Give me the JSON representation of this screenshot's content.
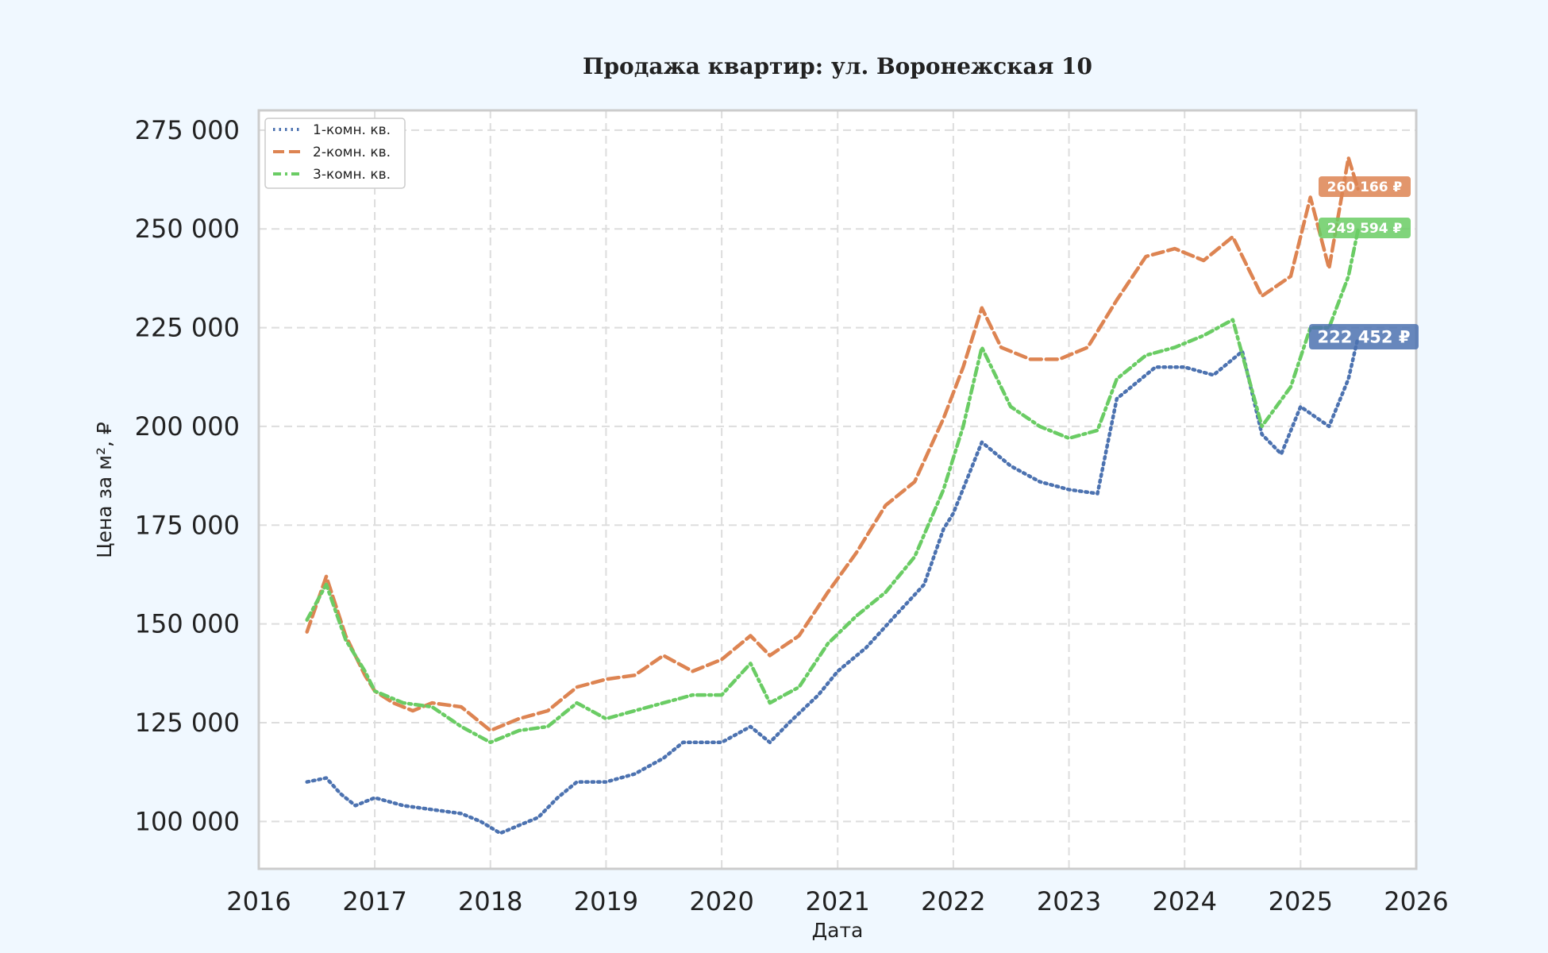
{
  "chart_data": {
    "type": "line",
    "title": "Продажа квартир: ул. Воронежская 10",
    "xlabel": "Дата",
    "ylabel": "Цена за м², ₽",
    "xlim": [
      "2016-01-01",
      "2026-01-01"
    ],
    "ylim": [
      88000,
      280000
    ],
    "x_ticks": [
      "2016",
      "2017",
      "2018",
      "2019",
      "2020",
      "2021",
      "2022",
      "2023",
      "2024",
      "2025",
      "2026"
    ],
    "y_ticks": [
      100000,
      125000,
      150000,
      175000,
      200000,
      225000,
      250000,
      275000
    ],
    "y_tick_labels": [
      "100 000",
      "125 000",
      "150 000",
      "175 000",
      "200 000",
      "225 000",
      "250 000",
      "275 000"
    ],
    "grid": true,
    "legend_position": "top-left",
    "series": [
      {
        "name": "1-комн. кв.",
        "color": "#4c72b0",
        "style": "dotted",
        "end_label": "222 452 ₽",
        "points": [
          [
            "2016-06-01",
            110000
          ],
          [
            "2016-08-01",
            111000
          ],
          [
            "2016-09-15",
            107000
          ],
          [
            "2016-11-01",
            104000
          ],
          [
            "2017-01-01",
            106000
          ],
          [
            "2017-04-01",
            104000
          ],
          [
            "2017-07-01",
            103000
          ],
          [
            "2017-10-01",
            102000
          ],
          [
            "2017-12-01",
            100000
          ],
          [
            "2018-02-01",
            97000
          ],
          [
            "2018-04-01",
            99000
          ],
          [
            "2018-06-01",
            101000
          ],
          [
            "2018-08-01",
            106000
          ],
          [
            "2018-10-01",
            110000
          ],
          [
            "2019-01-01",
            110000
          ],
          [
            "2019-04-01",
            112000
          ],
          [
            "2019-07-01",
            116000
          ],
          [
            "2019-09-01",
            120000
          ],
          [
            "2020-01-01",
            120000
          ],
          [
            "2020-04-01",
            124000
          ],
          [
            "2020-06-01",
            120000
          ],
          [
            "2020-08-01",
            125000
          ],
          [
            "2020-11-01",
            132000
          ],
          [
            "2021-01-01",
            138000
          ],
          [
            "2021-04-01",
            144000
          ],
          [
            "2021-07-01",
            152000
          ],
          [
            "2021-10-01",
            160000
          ],
          [
            "2021-12-01",
            174000
          ],
          [
            "2022-01-01",
            178000
          ],
          [
            "2022-04-01",
            196000
          ],
          [
            "2022-07-01",
            190000
          ],
          [
            "2022-10-01",
            186000
          ],
          [
            "2023-01-01",
            184000
          ],
          [
            "2023-04-01",
            183000
          ],
          [
            "2023-06-01",
            207000
          ],
          [
            "2023-10-01",
            215000
          ],
          [
            "2024-01-01",
            215000
          ],
          [
            "2024-04-01",
            213000
          ],
          [
            "2024-07-01",
            219000
          ],
          [
            "2024-09-01",
            198000
          ],
          [
            "2024-11-01",
            193000
          ],
          [
            "2025-01-01",
            205000
          ],
          [
            "2025-04-01",
            200000
          ],
          [
            "2025-06-01",
            212000
          ],
          [
            "2025-07-01",
            222452
          ]
        ]
      },
      {
        "name": "2-комн. кв.",
        "color": "#dd8452",
        "style": "dashed",
        "end_label": "260 166 ₽",
        "points": [
          [
            "2016-06-01",
            148000
          ],
          [
            "2016-08-01",
            162000
          ],
          [
            "2016-10-01",
            147000
          ],
          [
            "2016-12-01",
            137000
          ],
          [
            "2017-01-01",
            133000
          ],
          [
            "2017-03-01",
            130000
          ],
          [
            "2017-05-01",
            128000
          ],
          [
            "2017-07-01",
            130000
          ],
          [
            "2017-10-01",
            129000
          ],
          [
            "2018-01-01",
            123000
          ],
          [
            "2018-04-01",
            126000
          ],
          [
            "2018-07-01",
            128000
          ],
          [
            "2018-10-01",
            134000
          ],
          [
            "2019-01-01",
            136000
          ],
          [
            "2019-04-01",
            137000
          ],
          [
            "2019-07-01",
            142000
          ],
          [
            "2019-10-01",
            138000
          ],
          [
            "2020-01-01",
            141000
          ],
          [
            "2020-04-01",
            147000
          ],
          [
            "2020-06-01",
            142000
          ],
          [
            "2020-09-01",
            147000
          ],
          [
            "2020-12-01",
            158000
          ],
          [
            "2021-03-01",
            168000
          ],
          [
            "2021-06-01",
            180000
          ],
          [
            "2021-09-01",
            186000
          ],
          [
            "2021-12-01",
            202000
          ],
          [
            "2022-02-01",
            215000
          ],
          [
            "2022-04-01",
            230000
          ],
          [
            "2022-06-01",
            220000
          ],
          [
            "2022-09-01",
            217000
          ],
          [
            "2022-12-01",
            217000
          ],
          [
            "2023-03-01",
            220000
          ],
          [
            "2023-06-01",
            232000
          ],
          [
            "2023-09-01",
            243000
          ],
          [
            "2023-12-01",
            245000
          ],
          [
            "2024-03-01",
            242000
          ],
          [
            "2024-06-01",
            248000
          ],
          [
            "2024-09-01",
            233000
          ],
          [
            "2024-12-01",
            238000
          ],
          [
            "2025-02-01",
            258000
          ],
          [
            "2025-04-01",
            240000
          ],
          [
            "2025-06-01",
            268000
          ],
          [
            "2025-07-01",
            260166
          ]
        ]
      },
      {
        "name": "3-комн. кв.",
        "color": "#6acc64",
        "style": "dashdot",
        "end_label": "249 594 ₽",
        "points": [
          [
            "2016-06-01",
            151000
          ],
          [
            "2016-08-01",
            160000
          ],
          [
            "2016-10-01",
            146000
          ],
          [
            "2016-12-01",
            138000
          ],
          [
            "2017-01-01",
            133000
          ],
          [
            "2017-04-01",
            130000
          ],
          [
            "2017-07-01",
            129000
          ],
          [
            "2017-10-01",
            124000
          ],
          [
            "2018-01-01",
            120000
          ],
          [
            "2018-04-01",
            123000
          ],
          [
            "2018-07-01",
            124000
          ],
          [
            "2018-10-01",
            130000
          ],
          [
            "2019-01-01",
            126000
          ],
          [
            "2019-04-01",
            128000
          ],
          [
            "2019-07-01",
            130000
          ],
          [
            "2019-10-01",
            132000
          ],
          [
            "2020-01-01",
            132000
          ],
          [
            "2020-04-01",
            140000
          ],
          [
            "2020-06-01",
            130000
          ],
          [
            "2020-09-01",
            134000
          ],
          [
            "2020-12-01",
            145000
          ],
          [
            "2021-03-01",
            152000
          ],
          [
            "2021-06-01",
            158000
          ],
          [
            "2021-09-01",
            167000
          ],
          [
            "2021-12-01",
            184000
          ],
          [
            "2022-02-01",
            200000
          ],
          [
            "2022-04-01",
            220000
          ],
          [
            "2022-07-01",
            205000
          ],
          [
            "2022-10-01",
            200000
          ],
          [
            "2023-01-01",
            197000
          ],
          [
            "2023-04-01",
            199000
          ],
          [
            "2023-06-01",
            212000
          ],
          [
            "2023-09-01",
            218000
          ],
          [
            "2023-12-01",
            220000
          ],
          [
            "2024-03-01",
            223000
          ],
          [
            "2024-06-01",
            227000
          ],
          [
            "2024-09-01",
            200000
          ],
          [
            "2024-12-01",
            210000
          ],
          [
            "2025-02-01",
            225000
          ],
          [
            "2025-04-01",
            225000
          ],
          [
            "2025-06-01",
            238000
          ],
          [
            "2025-07-01",
            249594
          ]
        ]
      }
    ]
  }
}
